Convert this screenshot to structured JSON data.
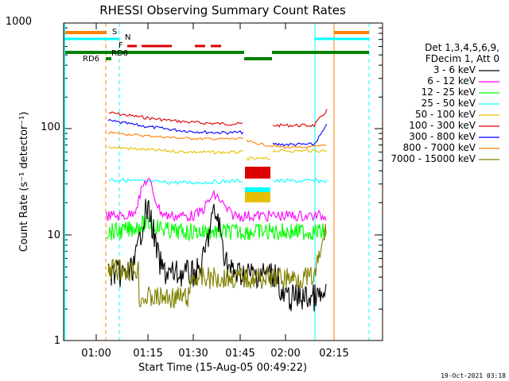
{
  "chart_data": {
    "type": "line",
    "title": "RHESSI Observing Summary Count Rates",
    "xlabel": "Start Time (15-Aug-05 00:49:22)",
    "ylabel": "Count Rate (s⁻¹ detector⁻¹)",
    "y_scale": "log",
    "ylim": [
      1,
      1000
    ],
    "xlim_minutes": [
      -4,
      30
    ],
    "x_ticks": [
      "01:00",
      "01:15",
      "01:30",
      "01:45",
      "02:00",
      "02:15"
    ],
    "y_ticks": [
      "1",
      "10",
      "100",
      "1000"
    ],
    "legend_title": [
      "Det 1,3,4,5,6,9,",
      "FDecim 1, Att 0"
    ],
    "legend_position": "right",
    "footer": "19-Oct-2021 03:18",
    "series": [
      {
        "name": "3 - 6 keV",
        "color": "#000000"
      },
      {
        "name": "6 - 12 keV",
        "color": "#ff00ff"
      },
      {
        "name": "12 - 25 keV",
        "color": "#00ff00"
      },
      {
        "name": "25 - 50 keV",
        "color": "#00ffff"
      },
      {
        "name": "50 - 100 keV",
        "color": "#e6c000"
      },
      {
        "name": "100 - 300 keV",
        "color": "#dd0000"
      },
      {
        "name": "300 - 800 keV",
        "color": "#0000ff"
      },
      {
        "name": "800 - 7000 keV",
        "color": "#ff8000"
      },
      {
        "name": "7000 - 15000 keV",
        "color": "#808000"
      }
    ],
    "flags": [
      {
        "label": "S",
        "color": "#ff8000"
      },
      {
        "label": "N",
        "color": "#00ffff"
      },
      {
        "label": "F",
        "color": "#dd0000"
      },
      {
        "label": "RD6",
        "color": "#008000"
      },
      {
        "label": "RD6",
        "color": "#008000"
      }
    ]
  }
}
